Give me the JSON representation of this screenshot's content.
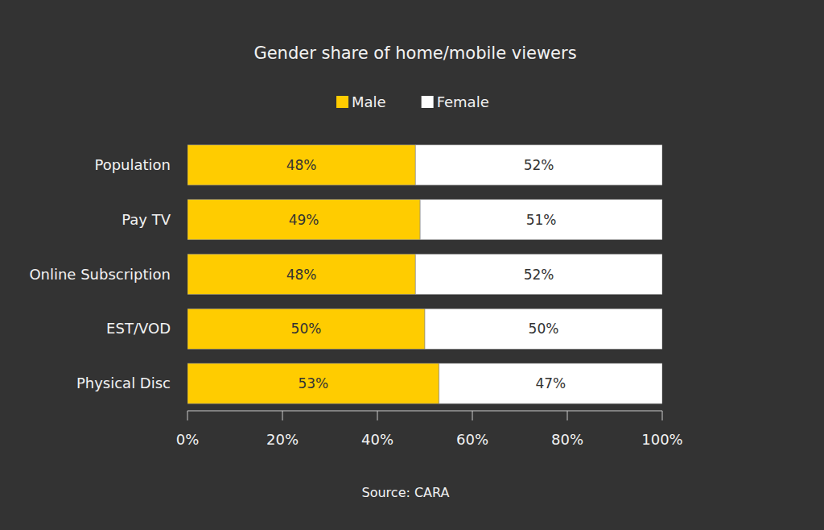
{
  "chart_data": {
    "type": "bar",
    "title": "Gender share of home/mobile viewers",
    "orientation": "horizontal",
    "stacked": true,
    "data_labels": true,
    "legend": "top",
    "grid": false,
    "categories": [
      "Population",
      "Pay TV",
      "Online Subscription",
      "EST/VOD",
      "Physical Disc"
    ],
    "series": [
      {
        "name": "Male",
        "color": "#ffcc00",
        "values": [
          48,
          49,
          48,
          50,
          53
        ],
        "value_labels": [
          "48%",
          "49%",
          "48%",
          "50%",
          "53%"
        ]
      },
      {
        "name": "Female",
        "color": "#ffffff",
        "values": [
          52,
          51,
          52,
          50,
          47
        ],
        "value_labels": [
          "52%",
          "51%",
          "52%",
          "50%",
          "47%"
        ]
      }
    ],
    "xlim": [
      0,
      100
    ],
    "xticks": [
      {
        "value": 0,
        "label": "0%"
      },
      {
        "value": 20,
        "label": "20%"
      },
      {
        "value": 40,
        "label": "40%"
      },
      {
        "value": 60,
        "label": "60%"
      },
      {
        "value": 80,
        "label": "80%"
      },
      {
        "value": 100,
        "label": "100%"
      }
    ],
    "annotations": [
      "Source: CARA"
    ]
  }
}
